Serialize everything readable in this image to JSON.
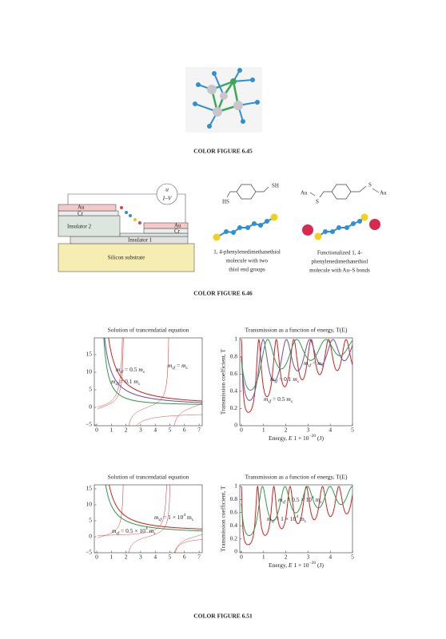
{
  "fig645": {
    "caption": "COLOR FIGURE 6.45"
  },
  "fig646": {
    "caption": "COLOR FIGURE 6.46",
    "device": {
      "meter": [
        "u",
        "I–V"
      ],
      "layers": [
        "Au",
        "Cr",
        "Insulator 2",
        "Au",
        "Cr",
        "Insulator 1",
        "Silicon substrate"
      ]
    },
    "molecule1": {
      "groups": [
        "SH",
        "HS"
      ],
      "caption": [
        "1, 4-phenylenedimethanethiol",
        "molecule with two",
        "thiol end groups"
      ]
    },
    "molecule2": {
      "groups": [
        "S",
        "Au",
        "Au",
        "S"
      ],
      "caption": [
        "Functionalized 1, 4-",
        "phenylenedimethanethiol",
        "molecule with Au–S bonds"
      ]
    }
  },
  "fig651": {
    "caption": "COLOR FIGURE 6.51",
    "plots": [
      {
        "title": "Solution of trancendatial equation",
        "xticks": [
          "0",
          "1",
          "2",
          "3",
          "4",
          "5",
          "6",
          "7"
        ],
        "yticks": [
          "15",
          "10",
          "5",
          "0",
          "−5"
        ],
        "labels": [
          [
            "m",
            "sf",
            " = 0.5 ",
            "m",
            "s"
          ],
          [
            "m",
            "sf",
            " = ",
            "m",
            "s"
          ],
          [
            "m",
            "sf",
            " = 0.1 ",
            "m",
            "s"
          ]
        ]
      },
      {
        "title": "Transmission as a function of energy, T(E)",
        "xticks": [
          "0",
          "1",
          "2",
          "3",
          "4",
          "5"
        ],
        "yticks": [
          "1",
          "0.8",
          "0.6",
          "0.4",
          "0.2",
          "0"
        ],
        "ylabel": "Transmission coefficient, T",
        "xlabel": [
          "Energy,  ",
          "E",
          " 1 × 10",
          "−20",
          " (J)"
        ],
        "labels": [
          [
            "m",
            "sf",
            " = ",
            "m",
            "s"
          ],
          [
            "m",
            "sf",
            " = 0.1 ",
            "m",
            "s"
          ],
          [
            "m",
            "sf",
            " = 0.5 ",
            "m",
            "s"
          ]
        ]
      },
      {
        "title": "Solution of trancendatial equation",
        "xticks": [
          "0",
          "1",
          "2",
          "3",
          "4",
          "5",
          "6",
          "7"
        ],
        "yticks": [
          "15",
          "10",
          "5",
          "0",
          "−5"
        ],
        "labels": [
          [
            "m",
            "sf",
            " = 1 × 10",
            "4",
            " m",
            "s"
          ],
          [
            "m",
            "sf",
            " = 0.5 × 10",
            "4",
            " m",
            "s"
          ]
        ]
      },
      {
        "title": "Transmission as a function of energy, T(E)",
        "xticks": [
          "0",
          "1",
          "2",
          "3",
          "4",
          "5"
        ],
        "yticks": [
          "1",
          "0.8",
          "0.6",
          "0.4",
          "0.2",
          "0"
        ],
        "ylabel": "Transmission coefficient, T",
        "xlabel": [
          "Energy,  ",
          "E",
          " 1 × 10",
          "−20",
          " (J)"
        ],
        "labels": [
          [
            "m",
            "sf",
            " = 0.5 × 10",
            "4",
            " m",
            "s"
          ],
          [
            "m",
            "sf",
            " = 1 × 10",
            "4",
            " m",
            "s"
          ]
        ]
      }
    ]
  }
}
